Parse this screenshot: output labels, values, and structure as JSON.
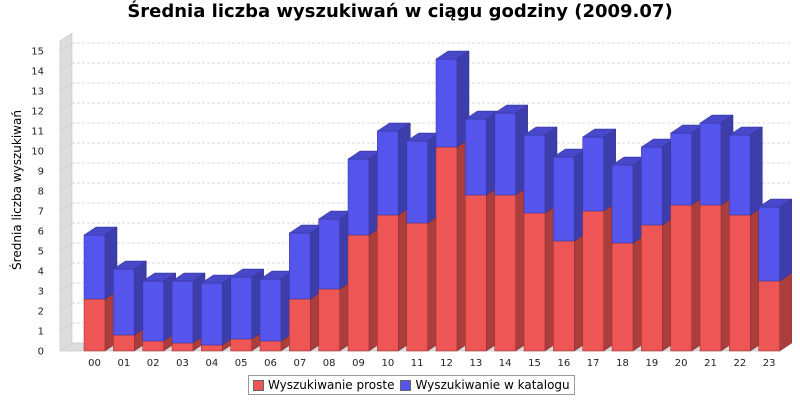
{
  "chart_data": {
    "type": "bar",
    "stacked": true,
    "style": "3d",
    "title": "Średnia liczba wyszukiwań w ciągu godziny (2009.07)",
    "xlabel": "",
    "ylabel": "Średnia liczba wyszukiwań",
    "ylim": [
      0,
      15.5
    ],
    "yticks": [
      0,
      1,
      2,
      3,
      4,
      5,
      6,
      7,
      8,
      9,
      10,
      11,
      12,
      13,
      14,
      15
    ],
    "grid": true,
    "legend_position": "bottom",
    "categories": [
      "00",
      "01",
      "02",
      "03",
      "04",
      "05",
      "06",
      "07",
      "08",
      "09",
      "10",
      "11",
      "12",
      "13",
      "14",
      "15",
      "16",
      "17",
      "18",
      "19",
      "20",
      "21",
      "22",
      "23"
    ],
    "series": [
      {
        "name": "Wyszukiwanie proste",
        "color": "#ee5555",
        "values": [
          2.6,
          0.8,
          0.5,
          0.4,
          0.3,
          0.6,
          0.5,
          2.6,
          3.1,
          5.8,
          6.8,
          6.4,
          10.2,
          7.8,
          7.8,
          6.9,
          5.5,
          7.0,
          5.4,
          6.3,
          7.3,
          7.3,
          6.8,
          3.5
        ]
      },
      {
        "name": "Wyszukiwanie w katalogu",
        "color": "#5555ee",
        "values": [
          3.2,
          3.3,
          3.0,
          3.1,
          3.1,
          3.1,
          3.1,
          3.3,
          3.5,
          3.8,
          4.2,
          4.1,
          4.4,
          3.8,
          4.1,
          3.9,
          4.2,
          3.7,
          3.9,
          3.9,
          3.6,
          4.1,
          4.0,
          3.7
        ]
      }
    ]
  }
}
